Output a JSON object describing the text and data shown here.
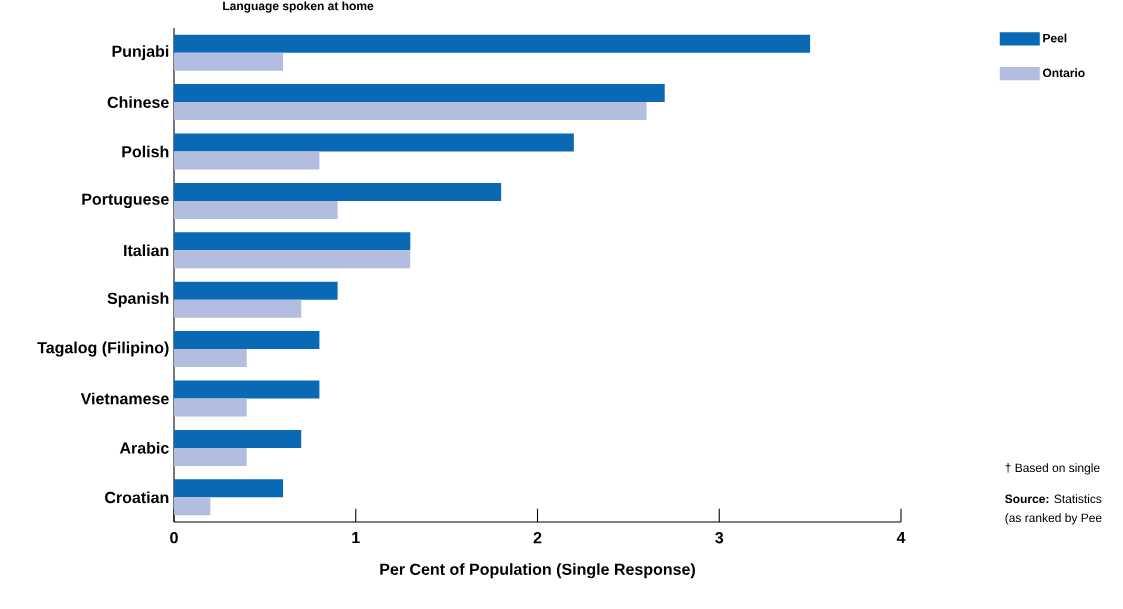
{
  "chart_data": {
    "type": "bar",
    "orientation": "horizontal",
    "title": "Language spoken at home",
    "xlabel": "Per Cent of Population (Single Response)",
    "categories": [
      "Punjabi",
      "Chinese",
      "Polish",
      "Portuguese",
      "Italian",
      "Spanish",
      "Tagalog (Filipino)",
      "Vietnamese",
      "Arabic",
      "Croatian"
    ],
    "series": [
      {
        "name": "Peel",
        "color": "#0a69b4",
        "values": [
          3.5,
          2.7,
          2.2,
          1.8,
          1.3,
          0.9,
          0.8,
          0.8,
          0.7,
          0.6
        ]
      },
      {
        "name": "Ontario",
        "color": "#b3bde0",
        "values": [
          0.6,
          2.6,
          0.8,
          0.9,
          1.3,
          0.7,
          0.4,
          0.4,
          0.4,
          0.2
        ]
      }
    ],
    "xlim": [
      0,
      4
    ],
    "xticks": [
      0,
      1,
      2,
      3,
      4
    ],
    "legend": "top right",
    "annotations": [
      "† Based on single",
      "**Source:** Statistics",
      "(as ranked by Pee"
    ]
  }
}
